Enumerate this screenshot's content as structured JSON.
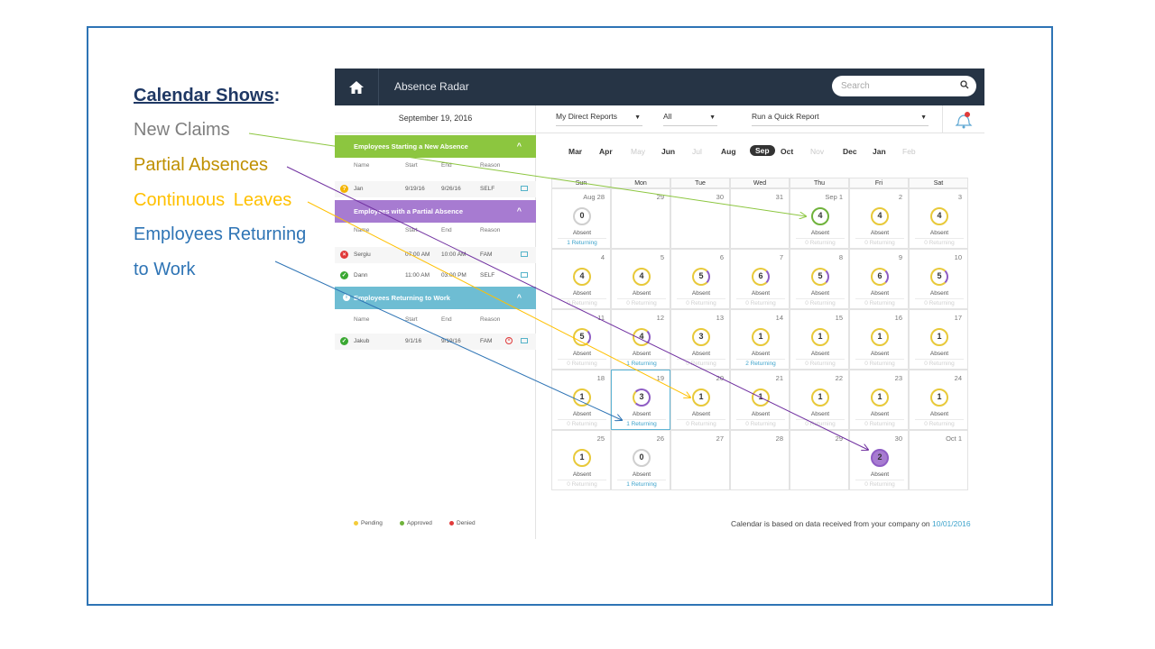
{
  "slide": {
    "title_main": "Calendar Shows",
    "title_colon": ":",
    "legend": [
      "New Claims",
      "Partial Absences",
      "Continuous  Leaves",
      "Employees Returning",
      "to Work"
    ]
  },
  "app": {
    "title": "Absence Radar",
    "search_placeholder": "Search",
    "date": "September 19, 2016",
    "filters": {
      "reports": "My Direct Reports",
      "scope": "All",
      "quick_report": "Run a Quick Report"
    },
    "sections": [
      {
        "title": "Employees Starting a New Absence",
        "headers": [
          "Name",
          "Start",
          "End",
          "Reason"
        ],
        "rows": [
          {
            "name": "Jan",
            "start": "9/19/16",
            "end": "9/26/16",
            "reason": "SELF",
            "status": "pending"
          }
        ]
      },
      {
        "title": "Employees with a Partial Absence",
        "headers": [
          "Name",
          "Start",
          "End",
          "Reason"
        ],
        "rows": [
          {
            "name": "Sergiu",
            "start": "07:00 AM",
            "end": "10:00 AM",
            "reason": "FAM",
            "status": "denied"
          },
          {
            "name": "Dann",
            "start": "11:00 AM",
            "end": "03:00 PM",
            "reason": "SELF",
            "status": "approved"
          }
        ]
      },
      {
        "title": "Employees Returning to Work",
        "headers": [
          "Name",
          "Start",
          "End",
          "Reason"
        ],
        "rows": [
          {
            "name": "Jakub",
            "start": "9/1/16",
            "end": "9/19/16",
            "reason": "FAM",
            "status": "approved"
          }
        ]
      }
    ],
    "bottom_legend": [
      "Pending",
      "Approved",
      "Denied"
    ],
    "months": [
      "Mar",
      "Apr",
      "May",
      "Jun",
      "Jul",
      "Aug",
      "Sep",
      "Oct",
      "Nov",
      "Dec",
      "Jan",
      "Feb"
    ],
    "weekdays": [
      "Sun",
      "Mon",
      "Tue",
      "Wed",
      "Thu",
      "Fri",
      "Sat"
    ],
    "absent_label": "Absent",
    "footer_text": "Calendar is based on data received from your company on ",
    "footer_date": "10/01/2016"
  },
  "calendar": [
    {
      "day": "Aug 28",
      "count": "0",
      "ret": "1 Returning"
    },
    {
      "day": "29"
    },
    {
      "day": "30"
    },
    {
      "day": "31"
    },
    {
      "day": "Sep 1",
      "count": "4",
      "ret": "0 Returning"
    },
    {
      "day": "2",
      "count": "4",
      "ret": "0 Returning"
    },
    {
      "day": "3",
      "count": "4",
      "ret": "0 Returning"
    },
    {
      "day": "4",
      "count": "4",
      "ret": "0 Returning"
    },
    {
      "day": "5",
      "count": "4",
      "ret": "0 Returning"
    },
    {
      "day": "6",
      "count": "5",
      "ret": "0 Returning"
    },
    {
      "day": "7",
      "count": "6",
      "ret": "0 Returning"
    },
    {
      "day": "8",
      "count": "5",
      "ret": "0 Returning"
    },
    {
      "day": "9",
      "count": "6",
      "ret": "0 Returning"
    },
    {
      "day": "10",
      "count": "5",
      "ret": "0 Returning"
    },
    {
      "day": "11",
      "count": "5",
      "ret": "0 Returning"
    },
    {
      "day": "12",
      "count": "4",
      "ret": "1 Returning"
    },
    {
      "day": "13",
      "count": "3",
      "ret": "0 Returning"
    },
    {
      "day": "14",
      "count": "1",
      "ret": "2 Returning"
    },
    {
      "day": "15",
      "count": "1",
      "ret": "0 Returning"
    },
    {
      "day": "16",
      "count": "1",
      "ret": "0 Returning"
    },
    {
      "day": "17",
      "count": "1",
      "ret": "0 Returning"
    },
    {
      "day": "18",
      "count": "1",
      "ret": "0 Returning"
    },
    {
      "day": "19",
      "count": "3",
      "ret": "1 Returning"
    },
    {
      "day": "20",
      "count": "1",
      "ret": "0 Returning"
    },
    {
      "day": "21",
      "count": "1",
      "ret": "0 Returning"
    },
    {
      "day": "22",
      "count": "1",
      "ret": "0 Returning"
    },
    {
      "day": "23",
      "count": "1",
      "ret": "0 Returning"
    },
    {
      "day": "24",
      "count": "1",
      "ret": "0 Returning"
    },
    {
      "day": "25",
      "count": "1",
      "ret": "0 Returning"
    },
    {
      "day": "26",
      "count": "0",
      "ret": "1 Returning"
    },
    {
      "day": "27"
    },
    {
      "day": "28"
    },
    {
      "day": "29"
    },
    {
      "day": "30",
      "count": "2",
      "ret": "0 Returning"
    },
    {
      "day": "Oct 1"
    }
  ]
}
